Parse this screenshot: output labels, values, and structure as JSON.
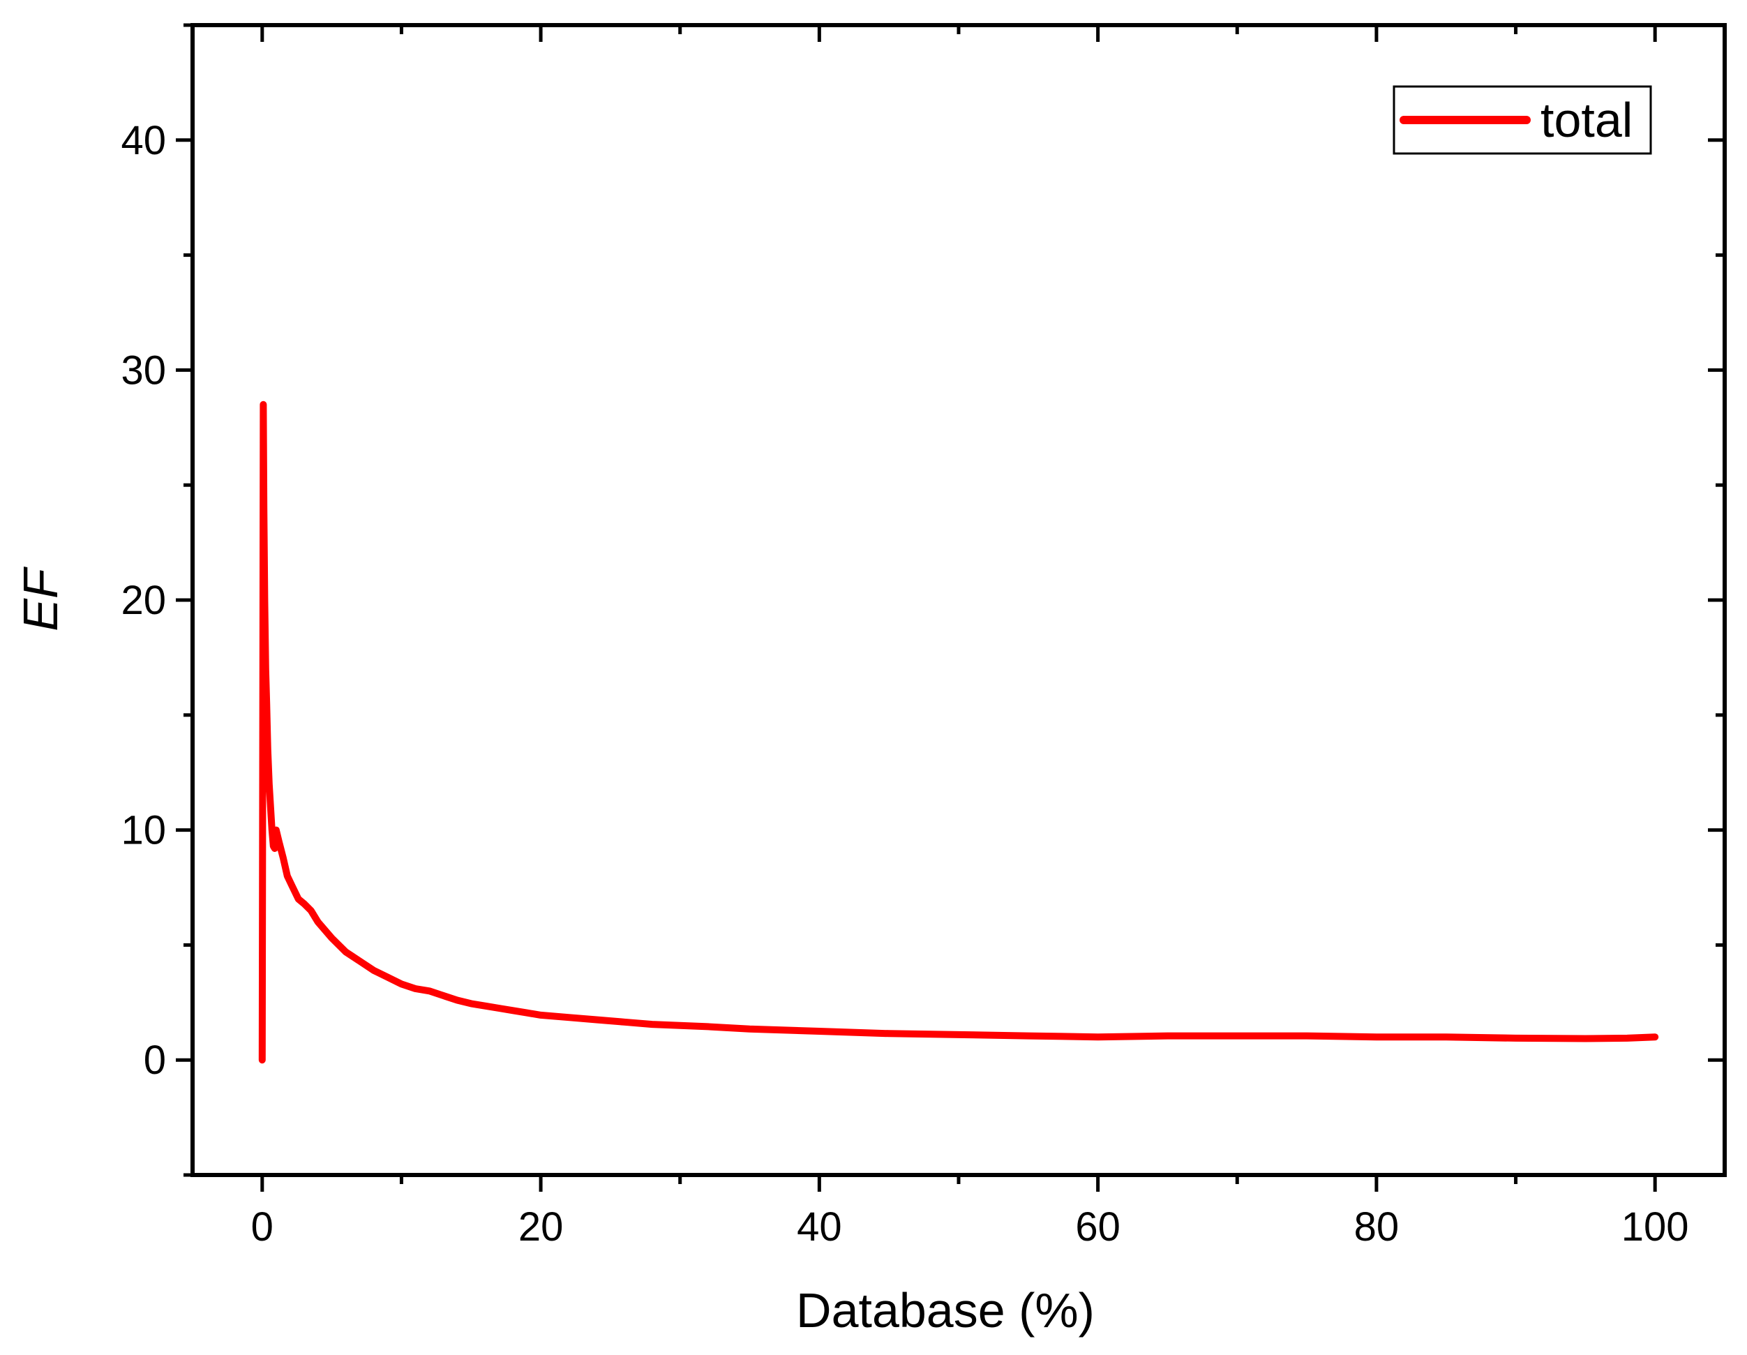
{
  "chart_data": {
    "type": "line",
    "title": "",
    "xlabel": "Database (%)",
    "ylabel": "EF",
    "xlim": [
      -5,
      105
    ],
    "ylim": [
      -5,
      45
    ],
    "xticks": [
      0,
      20,
      40,
      60,
      80,
      100
    ],
    "xtick_labels": [
      "0",
      "20",
      "40",
      "60",
      "80",
      "100"
    ],
    "xminor": [
      10,
      30,
      50,
      70,
      90
    ],
    "yticks": [
      0,
      10,
      20,
      30,
      40
    ],
    "ytick_labels": [
      "0",
      "10",
      "20",
      "30",
      "40"
    ],
    "yminor": [
      -5,
      5,
      15,
      25,
      35,
      45
    ],
    "grid": false,
    "legend_position": "top-right",
    "colors": {
      "series": "#ff0000",
      "axes": "#000000",
      "background": "#ffffff"
    },
    "series": [
      {
        "name": "total",
        "x": [
          0,
          0.08,
          0.12,
          0.18,
          0.25,
          0.32,
          0.4,
          0.5,
          0.6,
          0.7,
          0.8,
          0.9,
          1.0,
          1.2,
          1.5,
          1.8,
          2.2,
          2.6,
          3.0,
          3.5,
          4.0,
          5.0,
          6.0,
          7.0,
          8.0,
          9.0,
          10,
          11,
          12,
          13,
          14,
          15,
          16,
          17,
          18,
          19,
          20,
          22,
          24,
          26,
          28,
          30,
          32,
          35,
          40,
          45,
          50,
          55,
          60,
          65,
          70,
          75,
          80,
          85,
          90,
          95,
          98,
          100
        ],
        "y": [
          0,
          28.5,
          24,
          20,
          17,
          15.5,
          13.5,
          12,
          11,
          10,
          9.3,
          9.2,
          10,
          9.5,
          8.8,
          8.0,
          7.5,
          7.0,
          6.8,
          6.5,
          6.0,
          5.3,
          4.7,
          4.3,
          3.9,
          3.6,
          3.3,
          3.1,
          3.0,
          2.8,
          2.6,
          2.45,
          2.35,
          2.25,
          2.15,
          2.05,
          1.95,
          1.85,
          1.75,
          1.65,
          1.55,
          1.5,
          1.45,
          1.35,
          1.25,
          1.15,
          1.1,
          1.05,
          1.0,
          1.05,
          1.05,
          1.05,
          1.0,
          1.0,
          0.95,
          0.93,
          0.95,
          1.0
        ]
      }
    ]
  }
}
